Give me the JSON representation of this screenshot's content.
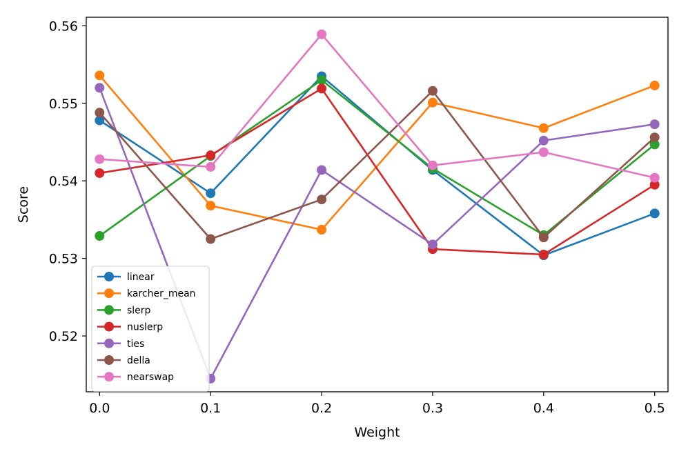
{
  "chart_data": {
    "type": "line",
    "title": "",
    "xlabel": "Weight",
    "ylabel": "Score",
    "xlim": [
      -0.012,
      0.512
    ],
    "ylim": [
      0.5128,
      0.5611
    ],
    "x": [
      0.0,
      0.1,
      0.2,
      0.3,
      0.4,
      0.5
    ],
    "x_ticks": [
      0.0,
      0.1,
      0.2,
      0.3,
      0.4,
      0.5
    ],
    "x_tick_labels": [
      "0.0",
      "0.1",
      "0.2",
      "0.3",
      "0.4",
      "0.5"
    ],
    "y_ticks": [
      0.52,
      0.53,
      0.54,
      0.55,
      0.56
    ],
    "y_tick_labels": [
      "0.52",
      "0.53",
      "0.54",
      "0.55",
      "0.56"
    ],
    "grid": false,
    "legend_position": "bottom-left",
    "series": [
      {
        "name": "linear",
        "color": "#1f77b4",
        "values": [
          0.5478,
          0.5384,
          0.5535,
          0.5414,
          0.5304,
          0.5358
        ]
      },
      {
        "name": "karcher_mean",
        "color": "#ff7f0e",
        "values": [
          0.5536,
          0.5368,
          0.5337,
          0.5501,
          0.5468,
          0.5523
        ]
      },
      {
        "name": "slerp",
        "color": "#2ca02c",
        "values": [
          0.5329,
          0.5432,
          0.553,
          0.5416,
          0.533,
          0.5447
        ]
      },
      {
        "name": "nuslerp",
        "color": "#d62728",
        "values": [
          0.541,
          0.5433,
          0.5519,
          0.5312,
          0.5305,
          0.5395
        ]
      },
      {
        "name": "ties",
        "color": "#9467bd",
        "values": [
          0.552,
          0.5145,
          0.5414,
          0.5318,
          0.5452,
          0.5473
        ]
      },
      {
        "name": "della",
        "color": "#8c564b",
        "values": [
          0.5488,
          0.5325,
          0.5376,
          0.5516,
          0.5327,
          0.5456
        ]
      },
      {
        "name": "nearswap",
        "color": "#e377c2",
        "values": [
          0.5428,
          0.5418,
          0.5589,
          0.542,
          0.5437,
          0.5404
        ]
      }
    ]
  }
}
